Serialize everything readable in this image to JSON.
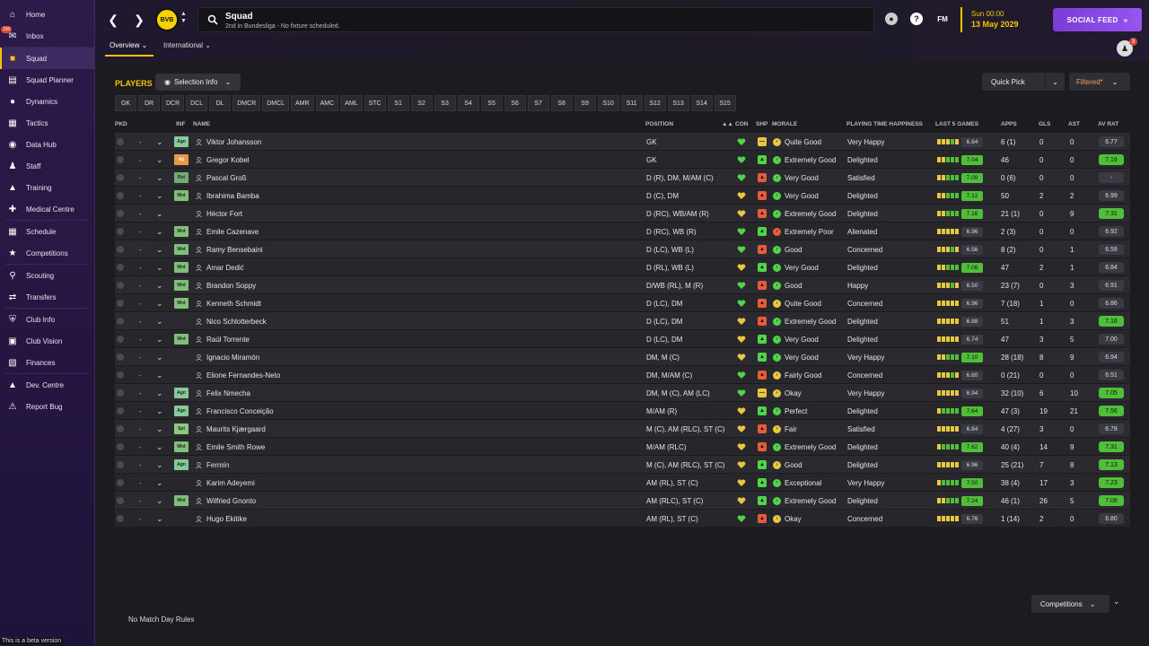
{
  "sidebar": {
    "inbox_badge": "150",
    "beta_text": "This is a beta version",
    "items": [
      {
        "label": "Home",
        "icon": "home-icon"
      },
      {
        "label": "Inbox",
        "icon": "inbox-icon"
      },
      {
        "label": "Squad",
        "icon": "shirt-icon"
      },
      {
        "label": "Squad Planner",
        "icon": "planner-icon"
      },
      {
        "label": "Dynamics",
        "icon": "dynamics-icon"
      },
      {
        "label": "Tactics",
        "icon": "tactics-icon"
      },
      {
        "label": "Data Hub",
        "icon": "data-hub-icon"
      },
      {
        "label": "Staff",
        "icon": "staff-icon"
      },
      {
        "label": "Training",
        "icon": "training-icon"
      },
      {
        "label": "Medical Centre",
        "icon": "medical-icon"
      },
      {
        "label": "Schedule",
        "icon": "schedule-icon"
      },
      {
        "label": "Competitions",
        "icon": "trophy-icon"
      },
      {
        "label": "Scouting",
        "icon": "scouting-icon"
      },
      {
        "label": "Transfers",
        "icon": "transfers-icon"
      },
      {
        "label": "Club Info",
        "icon": "club-info-icon"
      },
      {
        "label": "Club Vision",
        "icon": "club-vision-icon"
      },
      {
        "label": "Finances",
        "icon": "finances-icon"
      },
      {
        "label": "Dev. Centre",
        "icon": "dev-centre-icon"
      },
      {
        "label": "Report Bug",
        "icon": "report-bug-icon"
      }
    ]
  },
  "header": {
    "club_badge_text": "BVB",
    "title": "Squad",
    "subtitle": "2nd in Bundesliga - No fixture scheduled.",
    "fm_label": "FM",
    "help_label": "?",
    "date_day": "Sun 00:00",
    "date_date": "13 May 2029",
    "social_feed_label": "SOCIAL FEED",
    "users_badge": "3",
    "subtabs": [
      "Overview",
      "International"
    ]
  },
  "main": {
    "players_label": "PLAYERS",
    "selection_info_label": "Selection Info",
    "quick_pick_label": "Quick Pick",
    "filtered_label": "Filtered*",
    "position_filters": [
      "GK",
      "DR",
      "DCR",
      "DCL",
      "DL",
      "DMCR",
      "DMCL",
      "AMR",
      "AMC",
      "AML",
      "STC",
      "S1",
      "S2",
      "S3",
      "S4",
      "S5",
      "S6",
      "S7",
      "S8",
      "S9",
      "S10",
      "S11",
      "S12",
      "S13",
      "S14",
      "S15"
    ],
    "columns": {
      "pkd": "PKD",
      "inf": "INF",
      "name": "NAME",
      "position": "POSITION",
      "con": "CON",
      "shp": "SHP",
      "morale": "MORALE",
      "happiness": "PLAYING TIME HAPPINESS",
      "last5": "LAST 5 GAMES",
      "apps": "APPS",
      "gls": "GLS",
      "ast": "AST",
      "avrat": "AV RAT"
    },
    "no_match_rules": "No Match Day Rules",
    "competitions_label": "Competitions"
  },
  "colors": {
    "accent": "#f5c400",
    "green": "#4fbf3a",
    "social": "#8a48e6"
  },
  "players": [
    {
      "inf": "Agn",
      "name": "Viktor Johansson",
      "position": "GK",
      "con": "green",
      "shp": "yellow",
      "morale_icon": "yellow",
      "morale": "Quite Good",
      "happiness": "Very Happy",
      "form": "6.64",
      "form_hi": false,
      "apps": "6 (1)",
      "gls": "0",
      "ast": "0",
      "avrat": "6.77",
      "avrat_hi": false
    },
    {
      "inf": "Inj",
      "name": "Gregor Kobel",
      "position": "GK",
      "con": "green",
      "shp": "green",
      "morale_icon": "green",
      "morale": "Extremely Good",
      "happiness": "Delighted",
      "form": "7.04",
      "form_hi": true,
      "apps": "46",
      "gls": "0",
      "ast": "0",
      "avrat": "7.16",
      "avrat_hi": true
    },
    {
      "inf": "Rst",
      "name": "Pascal Groß",
      "position": "D (R), DM, M/AM (C)",
      "con": "green",
      "shp": "red",
      "morale_icon": "green",
      "morale": "Very Good",
      "happiness": "Satisfied",
      "form": "7.00",
      "form_hi": true,
      "apps": "0 (6)",
      "gls": "0",
      "ast": "0",
      "avrat": "-",
      "avrat_hi": false
    },
    {
      "inf": "Wnt",
      "name": "Ibrahima Bamba",
      "position": "D (C), DM",
      "con": "yellow",
      "shp": "red",
      "morale_icon": "green",
      "morale": "Very Good",
      "happiness": "Delighted",
      "form": "7.12",
      "form_hi": true,
      "apps": "50",
      "gls": "2",
      "ast": "2",
      "avrat": "6.99",
      "avrat_hi": false
    },
    {
      "inf": "",
      "name": "Héctor Fort",
      "position": "D (RC), WB/AM (R)",
      "con": "yellow",
      "shp": "red",
      "morale_icon": "green",
      "morale": "Extremely Good",
      "happiness": "Delighted",
      "form": "7.16",
      "form_hi": true,
      "apps": "21 (1)",
      "gls": "0",
      "ast": "9",
      "avrat": "7.31",
      "avrat_hi": true
    },
    {
      "inf": "Wnt",
      "name": "Emile Cazenave",
      "position": "D (RC), WB (R)",
      "con": "green",
      "shp": "green",
      "morale_icon": "red",
      "morale": "Extremely Poor",
      "happiness": "Alienated",
      "form": "6.96",
      "form_hi": false,
      "apps": "2 (3)",
      "gls": "0",
      "ast": "0",
      "avrat": "6.92",
      "avrat_hi": false
    },
    {
      "inf": "Wnt",
      "name": "Ramy Bensebaini",
      "position": "D (LC), WB (L)",
      "con": "green",
      "shp": "red",
      "morale_icon": "green",
      "morale": "Good",
      "happiness": "Concerned",
      "form": "6.56",
      "form_hi": false,
      "apps": "8 (2)",
      "gls": "0",
      "ast": "1",
      "avrat": "6.59",
      "avrat_hi": false
    },
    {
      "inf": "Wnt",
      "name": "Amar Dedić",
      "position": "D (RL), WB (L)",
      "con": "yellow",
      "shp": "green",
      "morale_icon": "green",
      "morale": "Very Good",
      "happiness": "Delighted",
      "form": "7.06",
      "form_hi": true,
      "apps": "47",
      "gls": "2",
      "ast": "1",
      "avrat": "6.84",
      "avrat_hi": false
    },
    {
      "inf": "Wnt",
      "name": "Brandon Soppy",
      "position": "D/WB (RL), M (R)",
      "con": "green",
      "shp": "red",
      "morale_icon": "green",
      "morale": "Good",
      "happiness": "Happy",
      "form": "6.50",
      "form_hi": false,
      "apps": "23 (7)",
      "gls": "0",
      "ast": "3",
      "avrat": "6.91",
      "avrat_hi": false
    },
    {
      "inf": "Wnt",
      "name": "Kenneth Schmidt",
      "position": "D (LC), DM",
      "con": "green",
      "shp": "red",
      "morale_icon": "yellow",
      "morale": "Quite Good",
      "happiness": "Concerned",
      "form": "6.96",
      "form_hi": false,
      "apps": "7 (18)",
      "gls": "1",
      "ast": "0",
      "avrat": "6.86",
      "avrat_hi": false
    },
    {
      "inf": "",
      "name": "Nico Schlotterbeck",
      "position": "D (LC), DM",
      "con": "yellow",
      "shp": "red",
      "morale_icon": "green",
      "morale": "Extremely Good",
      "happiness": "Delighted",
      "form": "6.88",
      "form_hi": false,
      "apps": "51",
      "gls": "1",
      "ast": "3",
      "avrat": "7.16",
      "avrat_hi": true
    },
    {
      "inf": "Wnt",
      "name": "Raúl Torrente",
      "position": "D (LC), DM",
      "con": "yellow",
      "shp": "green",
      "morale_icon": "green",
      "morale": "Very Good",
      "happiness": "Delighted",
      "form": "6.74",
      "form_hi": false,
      "apps": "47",
      "gls": "3",
      "ast": "5",
      "avrat": "7.00",
      "avrat_hi": false
    },
    {
      "inf": "",
      "name": "Ignacio Miramón",
      "position": "DM, M (C)",
      "con": "yellow",
      "shp": "green",
      "morale_icon": "green",
      "morale": "Very Good",
      "happiness": "Very Happy",
      "form": "7.10",
      "form_hi": true,
      "apps": "28 (18)",
      "gls": "8",
      "ast": "9",
      "avrat": "6.94",
      "avrat_hi": false
    },
    {
      "inf": "",
      "name": "Elione Fernandes-Neto",
      "position": "DM, M/AM (C)",
      "con": "green",
      "shp": "red",
      "morale_icon": "yellow",
      "morale": "Fairly Good",
      "happiness": "Concerned",
      "form": "6.60",
      "form_hi": false,
      "apps": "0 (21)",
      "gls": "0",
      "ast": "0",
      "avrat": "6.51",
      "avrat_hi": false
    },
    {
      "inf": "Agn",
      "name": "Felix Nmecha",
      "position": "DM, M (C), AM (LC)",
      "con": "green",
      "shp": "yellow",
      "morale_icon": "yellow",
      "morale": "Okay",
      "happiness": "Very Happy",
      "form": "6.94",
      "form_hi": false,
      "apps": "32 (10)",
      "gls": "6",
      "ast": "10",
      "avrat": "7.05",
      "avrat_hi": true
    },
    {
      "inf": "Agn",
      "name": "Francisco Conceição",
      "position": "M/AM (R)",
      "con": "yellow",
      "shp": "green",
      "morale_icon": "green",
      "morale": "Perfect",
      "happiness": "Delighted",
      "form": "7.64",
      "form_hi": true,
      "apps": "47 (3)",
      "gls": "19",
      "ast": "21",
      "avrat": "7.56",
      "avrat_hi": true
    },
    {
      "inf": "Spt",
      "name": "Maurits Kjærgaard",
      "position": "M (C), AM (RLC), ST (C)",
      "con": "yellow",
      "shp": "red",
      "morale_icon": "yellow",
      "morale": "Fair",
      "happiness": "Satisfied",
      "form": "6.84",
      "form_hi": false,
      "apps": "4 (27)",
      "gls": "3",
      "ast": "0",
      "avrat": "6.78",
      "avrat_hi": false
    },
    {
      "inf": "Wnt",
      "name": "Emile Smith Rowe",
      "position": "M/AM (RLC)",
      "con": "yellow",
      "shp": "red",
      "morale_icon": "green",
      "morale": "Extremely Good",
      "happiness": "Delighted",
      "form": "7.62",
      "form_hi": true,
      "apps": "40 (4)",
      "gls": "14",
      "ast": "9",
      "avrat": "7.31",
      "avrat_hi": true
    },
    {
      "inf": "Agn",
      "name": "Fermín",
      "position": "M (C), AM (RLC), ST (C)",
      "con": "yellow",
      "shp": "green",
      "morale_icon": "yellow",
      "morale": "Good",
      "happiness": "Delighted",
      "form": "6.96",
      "form_hi": false,
      "apps": "25 (21)",
      "gls": "7",
      "ast": "8",
      "avrat": "7.13",
      "avrat_hi": true
    },
    {
      "inf": "",
      "name": "Karim Adeyemi",
      "position": "AM (RL), ST (C)",
      "con": "yellow",
      "shp": "green",
      "morale_icon": "green",
      "morale": "Exceptional",
      "happiness": "Very Happy",
      "form": "7.50",
      "form_hi": true,
      "apps": "38 (4)",
      "gls": "17",
      "ast": "3",
      "avrat": "7.23",
      "avrat_hi": true
    },
    {
      "inf": "Wnt",
      "name": "Wilfried Gnonto",
      "position": "AM (RLC), ST (C)",
      "con": "yellow",
      "shp": "green",
      "morale_icon": "green",
      "morale": "Extremely Good",
      "happiness": "Delighted",
      "form": "7.24",
      "form_hi": true,
      "apps": "46 (1)",
      "gls": "26",
      "ast": "5",
      "avrat": "7.08",
      "avrat_hi": true
    },
    {
      "inf": "",
      "name": "Hugo Ekitike",
      "position": "AM (RL), ST (C)",
      "con": "green",
      "shp": "red",
      "morale_icon": "yellow",
      "morale": "Okay",
      "happiness": "Concerned",
      "form": "6.76",
      "form_hi": false,
      "apps": "1 (14)",
      "gls": "2",
      "ast": "0",
      "avrat": "6.80",
      "avrat_hi": false
    }
  ]
}
